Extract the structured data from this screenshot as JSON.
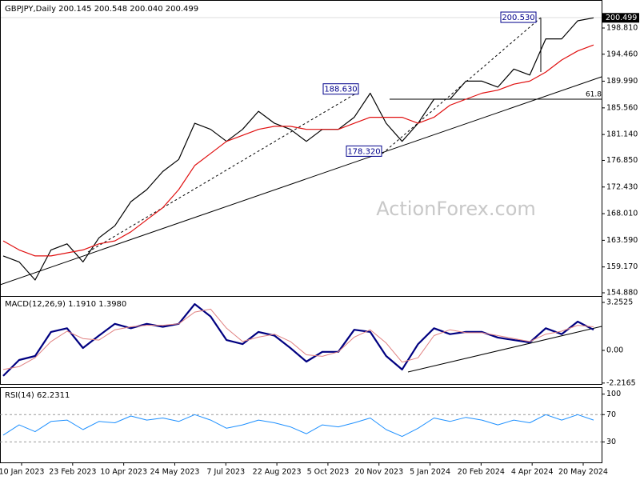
{
  "title": "GBPJPY,Daily  200.145 200.548 200.040 200.499",
  "watermark": "ActionForex.com",
  "time_axis": [
    "10 Jan 2023",
    "23 Feb 2023",
    "10 Apr 2023",
    "24 May 2023",
    "7 Jul 2023",
    "22 Aug 2023",
    "5 Oct 2023",
    "20 Nov 2023",
    "5 Jan 2024",
    "20 Feb 2024",
    "4 Apr 2024",
    "20 May 2024"
  ],
  "chart_data": [
    {
      "type": "line",
      "series": [
        {
          "color": "#000000",
          "width": 1.2,
          "values": [
            161,
            160,
            157,
            162,
            163,
            160,
            164,
            166,
            170,
            172,
            175,
            177,
            183,
            182,
            180,
            182,
            185,
            183,
            182,
            180,
            182,
            182,
            184,
            188,
            183,
            180,
            183,
            187,
            187,
            190,
            190,
            189,
            192,
            191,
            197,
            197,
            200,
            200.5
          ]
        },
        {
          "color": "#e01010",
          "width": 1.2,
          "values": [
            163.5,
            162,
            161,
            161,
            161.5,
            162,
            163,
            163.5,
            165,
            167,
            169,
            172,
            176,
            178,
            180,
            181,
            182,
            182.5,
            182.5,
            182,
            182,
            182,
            183,
            184,
            184,
            184,
            183,
            184,
            186,
            187,
            188,
            188.5,
            189.5,
            190,
            191.5,
            193.5,
            195,
            196
          ]
        }
      ],
      "ylim": [
        154.35,
        203.19
      ],
      "yticks": [
        {
          "value": 198.81,
          "label": "198.810"
        },
        {
          "value": 194.46,
          "label": "194.460"
        },
        {
          "value": 189.99,
          "label": "189.990"
        },
        {
          "value": 185.56,
          "label": "185.560"
        },
        {
          "value": 181.14,
          "label": "181.140"
        },
        {
          "value": 176.85,
          "label": "176.850"
        },
        {
          "value": 172.43,
          "label": "172.430"
        },
        {
          "value": 168.01,
          "label": "168.010"
        },
        {
          "value": 163.59,
          "label": "163.590"
        },
        {
          "value": 159.17,
          "label": "159.170"
        },
        {
          "value": 154.88,
          "label": "154.880"
        }
      ],
      "last_price": {
        "value": 200.499,
        "label": "200.499"
      },
      "annotations": [
        {
          "value": 188.63,
          "label": "188.630"
        },
        {
          "value": 178.32,
          "label": "178.320"
        },
        {
          "value": 200.53,
          "label": "200.530"
        }
      ],
      "fib_label": "61.8"
    },
    {
      "type": "line",
      "title": "MACD(12,26,9) 1.1910 1.3980",
      "series": [
        {
          "color": "#000080",
          "width": 2.2,
          "values": [
            -1.73,
            -0.65,
            -0.38,
            1.25,
            1.5,
            0.16,
            1.0,
            1.8,
            1.5,
            1.8,
            1.6,
            1.8,
            3.14,
            2.3,
            0.7,
            0.43,
            1.25,
            1.0,
            0.16,
            -0.76,
            -0.1,
            -0.1,
            1.4,
            1.25,
            -0.38,
            -1.3,
            0.43,
            1.5,
            1.1,
            1.25,
            1.25,
            0.87,
            0.7,
            0.54,
            1.5,
            1.1,
            1.95,
            1.4
          ]
        },
        {
          "color": "#e08080",
          "width": 1,
          "values": [
            -1.3,
            -1.1,
            -0.5,
            0.6,
            1.3,
            0.8,
            0.7,
            1.4,
            1.6,
            1.7,
            1.7,
            1.8,
            2.6,
            2.8,
            1.5,
            0.6,
            0.9,
            1.1,
            0.6,
            -0.3,
            -0.4,
            -0.1,
            0.9,
            1.4,
            0.5,
            -0.8,
            -0.5,
            1.0,
            1.4,
            1.2,
            1.2,
            1.0,
            0.8,
            0.6,
            1.1,
            1.3,
            1.7,
            1.6
          ]
        }
      ],
      "ylim": [
        -2.28,
        3.58
      ],
      "yticks": [
        3.2525,
        {
          "value": 0,
          "label": "0.00"
        },
        -2.2165
      ]
    },
    {
      "type": "line",
      "title": "RSI(14) 62.2311",
      "series": [
        {
          "color": "#1e90ff",
          "width": 1,
          "values": [
            40,
            55,
            45,
            60,
            62,
            48,
            60,
            58,
            68,
            62,
            65,
            60,
            70,
            62,
            50,
            55,
            62,
            58,
            52,
            42,
            55,
            52,
            58,
            65,
            48,
            38,
            50,
            65,
            60,
            66,
            62,
            55,
            62,
            58,
            70,
            62,
            70,
            62
          ]
        }
      ],
      "ylim": [
        0,
        107.8
      ],
      "yticks": [
        100,
        70,
        30
      ],
      "levels": [
        70,
        30
      ]
    }
  ]
}
